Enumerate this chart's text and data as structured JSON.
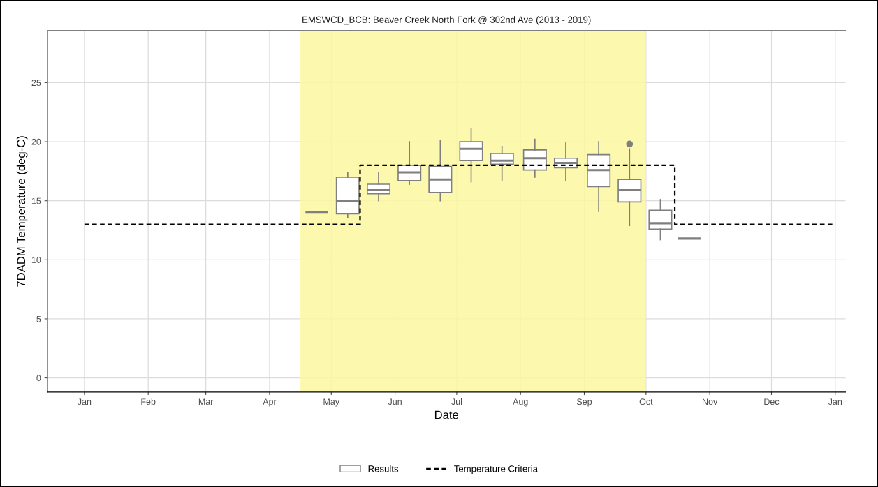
{
  "chart_data": {
    "type": "box",
    "title": "EMSWCD_BCB: Beaver Creek North Fork @ 302nd Ave (2013 - 2019)",
    "xlabel": "Date",
    "ylabel": "7DADM Temperature (deg-C)",
    "xlim": [
      "2018-12-14",
      "2020-01-06"
    ],
    "xticks": [
      {
        "value": "2019-01-01",
        "label": "Jan"
      },
      {
        "value": "2019-02-01",
        "label": "Feb"
      },
      {
        "value": "2019-03-01",
        "label": "Mar"
      },
      {
        "value": "2019-04-01",
        "label": "Apr"
      },
      {
        "value": "2019-05-01",
        "label": "May"
      },
      {
        "value": "2019-06-01",
        "label": "Jun"
      },
      {
        "value": "2019-07-01",
        "label": "Jul"
      },
      {
        "value": "2019-08-01",
        "label": "Aug"
      },
      {
        "value": "2019-09-01",
        "label": "Sep"
      },
      {
        "value": "2019-10-01",
        "label": "Oct"
      },
      {
        "value": "2019-11-01",
        "label": "Nov"
      },
      {
        "value": "2019-12-01",
        "label": "Dec"
      },
      {
        "value": "2020-01-01",
        "label": "Jan"
      }
    ],
    "ylim": [
      -1.2,
      29.4
    ],
    "yticks": [
      0,
      5,
      10,
      15,
      20,
      25
    ],
    "grid": true,
    "legend": "bottom",
    "bands": [
      {
        "axis": "x",
        "from": "2019-04-16",
        "to": "2019-10-01",
        "color": "#fbf8a0"
      }
    ],
    "series": [
      {
        "name": "Results",
        "color": "#7f7f7f",
        "x": [
          "2019-04-24",
          "2019-05-09",
          "2019-05-24",
          "2019-06-08",
          "2019-06-23",
          "2019-07-08",
          "2019-07-23",
          "2019-08-08",
          "2019-08-23",
          "2019-09-08",
          "2019-09-23",
          "2019-10-08",
          "2019-10-22"
        ],
        "boxes": [
          {
            "low": 14.0,
            "q1": 14.0,
            "median": 14.0,
            "q3": 14.0,
            "high": 14.0
          },
          {
            "low": 13.6,
            "q1": 13.9,
            "median": 15.0,
            "q3": 17.0,
            "high": 17.4
          },
          {
            "low": 15.0,
            "q1": 15.6,
            "median": 15.9,
            "q3": 16.4,
            "high": 17.4
          },
          {
            "low": 16.4,
            "q1": 16.7,
            "median": 17.4,
            "q3": 18.0,
            "high": 20.0
          },
          {
            "low": 15.0,
            "q1": 15.7,
            "median": 16.8,
            "q3": 17.9,
            "high": 20.1
          },
          {
            "low": 16.6,
            "q1": 18.4,
            "median": 19.4,
            "q3": 20.0,
            "high": 21.1
          },
          {
            "low": 16.7,
            "q1": 18.1,
            "median": 18.4,
            "q3": 19.0,
            "high": 19.6
          },
          {
            "low": 17.0,
            "q1": 17.6,
            "median": 18.6,
            "q3": 19.3,
            "high": 20.2
          },
          {
            "low": 16.7,
            "q1": 17.8,
            "median": 18.2,
            "q3": 18.6,
            "high": 19.9
          },
          {
            "low": 14.1,
            "q1": 16.2,
            "median": 17.6,
            "q3": 18.9,
            "high": 20.0
          },
          {
            "low": 12.9,
            "q1": 14.9,
            "median": 15.9,
            "q3": 16.8,
            "high": 19.4,
            "outliers": [
              19.8
            ]
          },
          {
            "low": 11.7,
            "q1": 12.6,
            "median": 13.1,
            "q3": 14.2,
            "high": 15.1
          },
          {
            "low": 11.8,
            "q1": 11.8,
            "median": 11.8,
            "q3": 11.8,
            "high": 11.8
          }
        ]
      },
      {
        "type": "step",
        "name": "Temperature Criteria",
        "color": "#000000",
        "line_style": "dashed",
        "x": [
          "2019-01-01",
          "2019-05-15",
          "2019-10-15",
          "2020-01-01"
        ],
        "values": [
          13,
          18,
          13,
          13
        ]
      }
    ]
  }
}
